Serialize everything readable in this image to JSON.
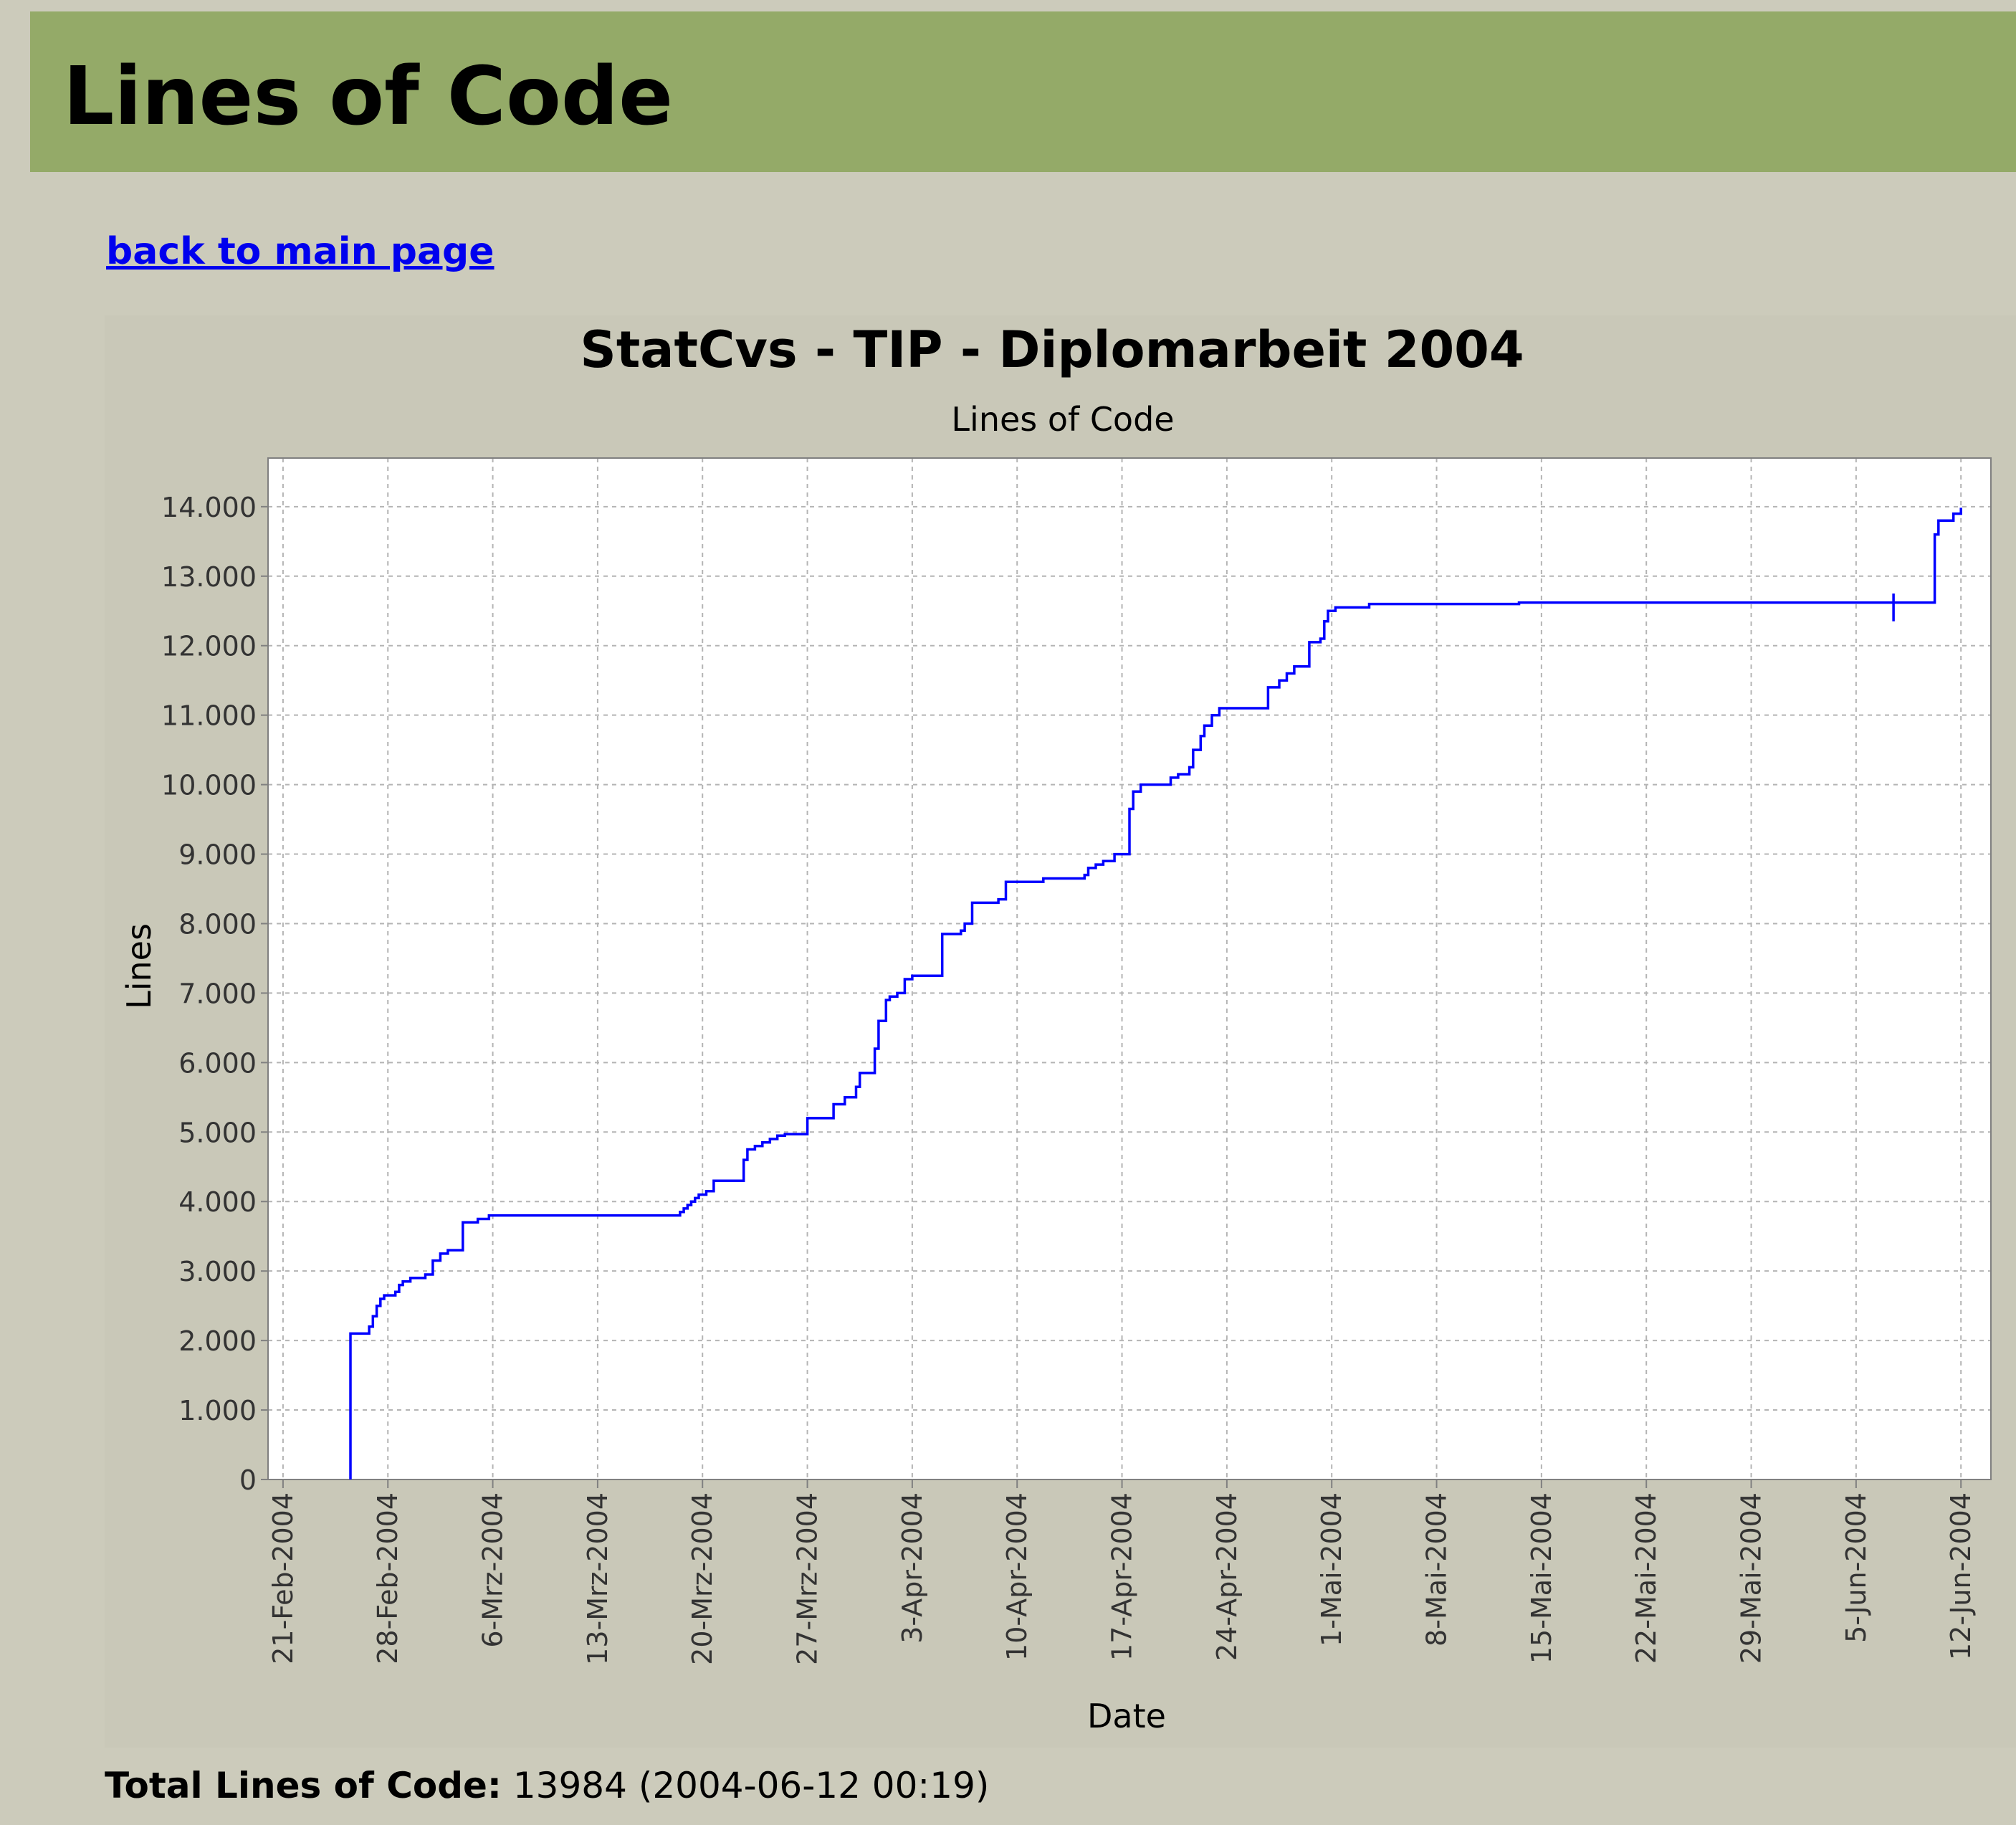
{
  "page": {
    "title": "Lines of Code",
    "back_link": "back to main page",
    "total_label": "Total Lines of Code:",
    "total_value": "13984",
    "total_timestamp": "(2004-06-12 00:19)"
  },
  "colors": {
    "header_bg": "#94aa68",
    "page_bg": "#cccbbb",
    "chart_bg": "#c9c8b8",
    "plot_bg": "#ffffff",
    "series": "#0000ff",
    "link": "#0000ee"
  },
  "chart_data": {
    "type": "line",
    "title": "StatCvs - TIP - Diplomarbeit 2004",
    "subtitle": "Lines of Code",
    "xlabel": "Date",
    "ylabel": "Lines",
    "grid": true,
    "legend": "none",
    "line_style": "step",
    "xlim": [
      "2004-02-20",
      "2004-06-14"
    ],
    "ylim": [
      0,
      14700
    ],
    "x_ticks": [
      {
        "date": "2004-02-21",
        "label": "21-Feb-2004"
      },
      {
        "date": "2004-02-28",
        "label": "28-Feb-2004"
      },
      {
        "date": "2004-03-06",
        "label": "6-Mrz-2004"
      },
      {
        "date": "2004-03-13",
        "label": "13-Mrz-2004"
      },
      {
        "date": "2004-03-20",
        "label": "20-Mrz-2004"
      },
      {
        "date": "2004-03-27",
        "label": "27-Mrz-2004"
      },
      {
        "date": "2004-04-03",
        "label": "3-Apr-2004"
      },
      {
        "date": "2004-04-10",
        "label": "10-Apr-2004"
      },
      {
        "date": "2004-04-17",
        "label": "17-Apr-2004"
      },
      {
        "date": "2004-04-24",
        "label": "24-Apr-2004"
      },
      {
        "date": "2004-05-01",
        "label": "1-Mai-2004"
      },
      {
        "date": "2004-05-08",
        "label": "8-Mai-2004"
      },
      {
        "date": "2004-05-15",
        "label": "15-Mai-2004"
      },
      {
        "date": "2004-05-22",
        "label": "22-Mai-2004"
      },
      {
        "date": "2004-05-29",
        "label": "29-Mai-2004"
      },
      {
        "date": "2004-06-05",
        "label": "5-Jun-2004"
      },
      {
        "date": "2004-06-12",
        "label": "12-Jun-2004"
      }
    ],
    "y_ticks": [
      {
        "value": 0,
        "label": "0"
      },
      {
        "value": 1000,
        "label": "1.000"
      },
      {
        "value": 2000,
        "label": "2.000"
      },
      {
        "value": 3000,
        "label": "3.000"
      },
      {
        "value": 4000,
        "label": "4.000"
      },
      {
        "value": 5000,
        "label": "5.000"
      },
      {
        "value": 6000,
        "label": "6.000"
      },
      {
        "value": 7000,
        "label": "7.000"
      },
      {
        "value": 8000,
        "label": "8.000"
      },
      {
        "value": 9000,
        "label": "9.000"
      },
      {
        "value": 10000,
        "label": "10.000"
      },
      {
        "value": 11000,
        "label": "11.000"
      },
      {
        "value": 12000,
        "label": "12.000"
      },
      {
        "value": 13000,
        "label": "13.000"
      },
      {
        "value": 14000,
        "label": "14.000"
      }
    ],
    "series": [
      {
        "points": [
          {
            "x": "2004-02-25T12:00",
            "y": 0
          },
          {
            "x": "2004-02-25T12:00",
            "y": 2100
          },
          {
            "x": "2004-02-26T18:00",
            "y": 2200
          },
          {
            "x": "2004-02-27T00:00",
            "y": 2350
          },
          {
            "x": "2004-02-27T06:00",
            "y": 2500
          },
          {
            "x": "2004-02-27T12:00",
            "y": 2600
          },
          {
            "x": "2004-02-27T18:00",
            "y": 2650
          },
          {
            "x": "2004-02-28T12:00",
            "y": 2700
          },
          {
            "x": "2004-02-28T18:00",
            "y": 2800
          },
          {
            "x": "2004-02-29T00:00",
            "y": 2850
          },
          {
            "x": "2004-02-29T12:00",
            "y": 2900
          },
          {
            "x": "2004-03-01T12:00",
            "y": 2950
          },
          {
            "x": "2004-03-02T00:00",
            "y": 3150
          },
          {
            "x": "2004-03-02T12:00",
            "y": 3250
          },
          {
            "x": "2004-03-03T00:00",
            "y": 3300
          },
          {
            "x": "2004-03-04T00:00",
            "y": 3700
          },
          {
            "x": "2004-03-05T00:00",
            "y": 3750
          },
          {
            "x": "2004-03-05T18:00",
            "y": 3800
          },
          {
            "x": "2004-03-18T12:00",
            "y": 3850
          },
          {
            "x": "2004-03-18T18:00",
            "y": 3900
          },
          {
            "x": "2004-03-19T00:00",
            "y": 3950
          },
          {
            "x": "2004-03-19T06:00",
            "y": 4000
          },
          {
            "x": "2004-03-19T12:00",
            "y": 4050
          },
          {
            "x": "2004-03-19T18:00",
            "y": 4100
          },
          {
            "x": "2004-03-20T06:00",
            "y": 4150
          },
          {
            "x": "2004-03-20T18:00",
            "y": 4300
          },
          {
            "x": "2004-03-22T18:00",
            "y": 4600
          },
          {
            "x": "2004-03-23T00:00",
            "y": 4750
          },
          {
            "x": "2004-03-23T12:00",
            "y": 4800
          },
          {
            "x": "2004-03-24T00:00",
            "y": 4850
          },
          {
            "x": "2004-03-24T12:00",
            "y": 4900
          },
          {
            "x": "2004-03-25T00:00",
            "y": 4950
          },
          {
            "x": "2004-03-25T12:00",
            "y": 4970
          },
          {
            "x": "2004-03-27T00:00",
            "y": 5200
          },
          {
            "x": "2004-03-28T18:00",
            "y": 5400
          },
          {
            "x": "2004-03-29T12:00",
            "y": 5500
          },
          {
            "x": "2004-03-30T06:00",
            "y": 5650
          },
          {
            "x": "2004-03-30T12:00",
            "y": 5850
          },
          {
            "x": "2004-03-31T12:00",
            "y": 6200
          },
          {
            "x": "2004-03-31T18:00",
            "y": 6600
          },
          {
            "x": "2004-04-01T06:00",
            "y": 6900
          },
          {
            "x": "2004-04-01T12:00",
            "y": 6950
          },
          {
            "x": "2004-04-02T00:00",
            "y": 7000
          },
          {
            "x": "2004-04-02T12:00",
            "y": 7200
          },
          {
            "x": "2004-04-03T00:00",
            "y": 7250
          },
          {
            "x": "2004-04-05T00:00",
            "y": 7850
          },
          {
            "x": "2004-04-06T06:00",
            "y": 7900
          },
          {
            "x": "2004-04-06T12:00",
            "y": 8000
          },
          {
            "x": "2004-04-07T00:00",
            "y": 8300
          },
          {
            "x": "2004-04-08T18:00",
            "y": 8350
          },
          {
            "x": "2004-04-09T06:00",
            "y": 8600
          },
          {
            "x": "2004-04-11T18:00",
            "y": 8650
          },
          {
            "x": "2004-04-14T12:00",
            "y": 8700
          },
          {
            "x": "2004-04-14T18:00",
            "y": 8800
          },
          {
            "x": "2004-04-15T06:00",
            "y": 8850
          },
          {
            "x": "2004-04-15T18:00",
            "y": 8900
          },
          {
            "x": "2004-04-16T12:00",
            "y": 9000
          },
          {
            "x": "2004-04-17T12:00",
            "y": 9650
          },
          {
            "x": "2004-04-17T18:00",
            "y": 9900
          },
          {
            "x": "2004-04-18T06:00",
            "y": 10000
          },
          {
            "x": "2004-04-20T06:00",
            "y": 10100
          },
          {
            "x": "2004-04-20T18:00",
            "y": 10150
          },
          {
            "x": "2004-04-21T12:00",
            "y": 10250
          },
          {
            "x": "2004-04-21T18:00",
            "y": 10500
          },
          {
            "x": "2004-04-22T06:00",
            "y": 10700
          },
          {
            "x": "2004-04-22T12:00",
            "y": 10850
          },
          {
            "x": "2004-04-23T00:00",
            "y": 11000
          },
          {
            "x": "2004-04-23T12:00",
            "y": 11100
          },
          {
            "x": "2004-04-26T18:00",
            "y": 11400
          },
          {
            "x": "2004-04-27T12:00",
            "y": 11500
          },
          {
            "x": "2004-04-28T00:00",
            "y": 11600
          },
          {
            "x": "2004-04-28T12:00",
            "y": 11700
          },
          {
            "x": "2004-04-29T12:00",
            "y": 12050
          },
          {
            "x": "2004-04-30T06:00",
            "y": 12100
          },
          {
            "x": "2004-04-30T12:00",
            "y": 12350
          },
          {
            "x": "2004-04-30T18:00",
            "y": 12500
          },
          {
            "x": "2004-05-01T06:00",
            "y": 12550
          },
          {
            "x": "2004-05-03T12:00",
            "y": 12600
          },
          {
            "x": "2004-05-13T12:00",
            "y": 12620
          },
          {
            "x": "2004-06-07T12:00",
            "y": 12620
          },
          {
            "x": "2004-06-07T12:00",
            "y": 12350
          },
          {
            "x": "2004-06-07T12:00",
            "y": 12750
          },
          {
            "x": "2004-06-07T12:00",
            "y": 12620
          },
          {
            "x": "2004-06-10T06:00",
            "y": 13600
          },
          {
            "x": "2004-06-10T12:00",
            "y": 13800
          },
          {
            "x": "2004-06-11T12:00",
            "y": 13900
          },
          {
            "x": "2004-06-12T00:00",
            "y": 13984
          }
        ]
      }
    ]
  }
}
